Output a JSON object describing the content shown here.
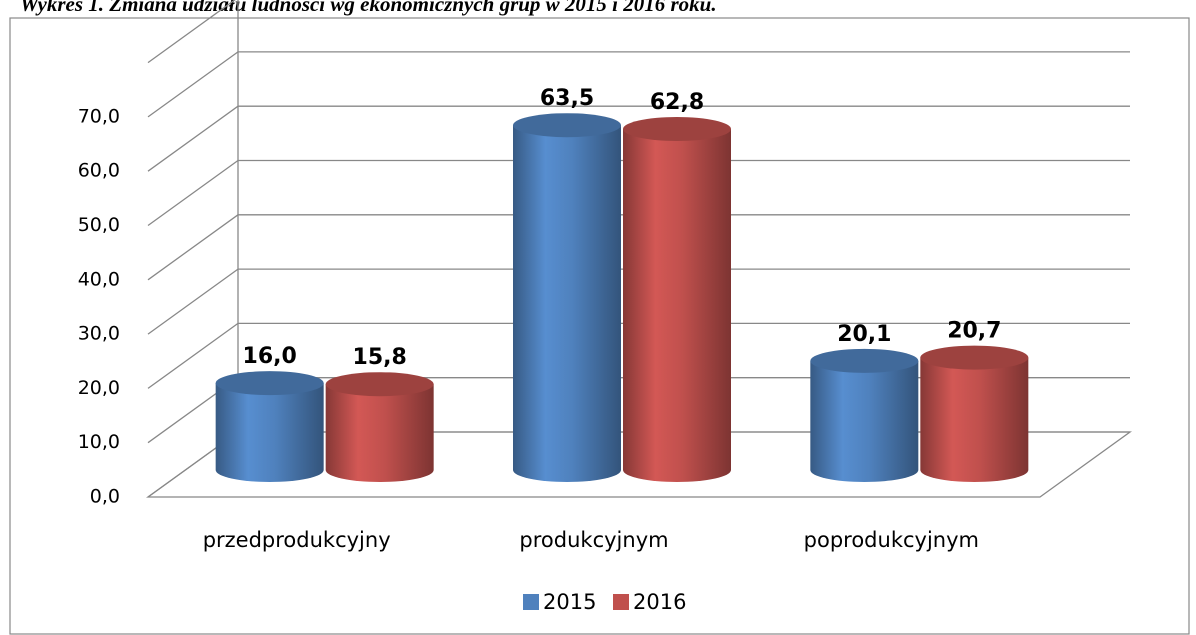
{
  "chart_data": {
    "type": "bar3d",
    "title": "Wykres 1. Zmiana udziału ludności wg ekonomicznych grup w 2015 i 2016 roku.",
    "categories": [
      "przedprodukcyjny",
      "produkcyjnym",
      "poprodukcyjnym"
    ],
    "series": [
      {
        "name": "2015",
        "color": "#4f81bd",
        "values": [
          16.0,
          63.5,
          20.1
        ],
        "value_labels": [
          "16,0",
          "63,5",
          "20,1"
        ]
      },
      {
        "name": "2016",
        "color": "#c0504d",
        "values": [
          15.8,
          62.8,
          20.7
        ],
        "value_labels": [
          "15,8",
          "62,8",
          "20,7"
        ]
      }
    ],
    "ylim": [
      0,
      80
    ],
    "yticks": [
      {
        "value": 0,
        "label": "0,0"
      },
      {
        "value": 10,
        "label": "10,0"
      },
      {
        "value": 20,
        "label": "20,0"
      },
      {
        "value": 30,
        "label": "30,0"
      },
      {
        "value": 40,
        "label": "40,0"
      },
      {
        "value": 50,
        "label": "50,0"
      },
      {
        "value": 60,
        "label": "60,0"
      },
      {
        "value": 70,
        "label": "70,0"
      }
    ],
    "grid": true,
    "legend": "bottom"
  }
}
